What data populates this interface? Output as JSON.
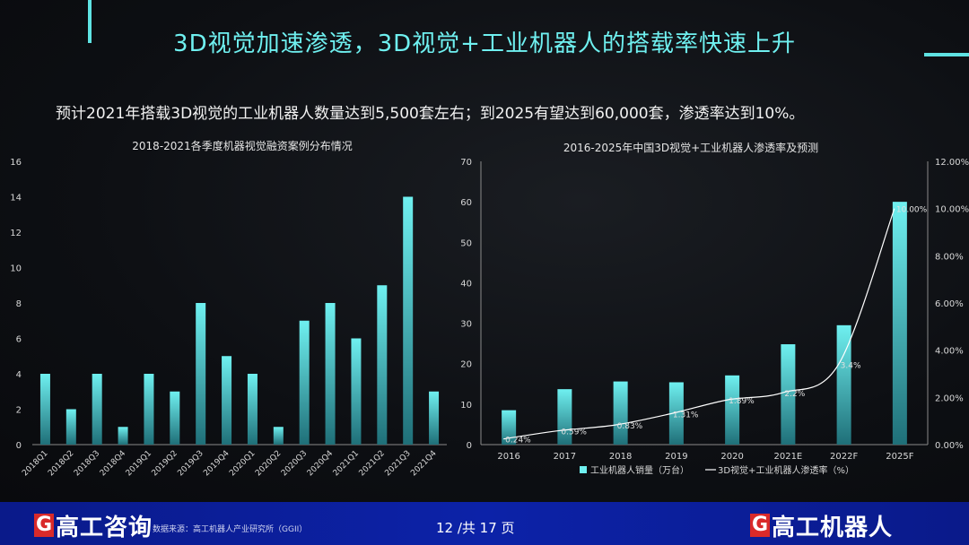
{
  "title": "3D视觉加速渗透，3D视觉+工业机器人的搭载率快速上升",
  "subtitle": "预计2021年搭载3D视觉的工业机器人数量达到5,500套左右；到2025有望达到60,000套，渗透率达到10%。",
  "footer": {
    "left_logo_mark": "G",
    "left_logo_text": "高工咨询",
    "source": "数据来源：高工机器人产业研究所（GGII）",
    "pager": "12 /共 17 页",
    "right_logo_mark": "G",
    "right_logo_text": "高工机器人"
  },
  "colors": {
    "accent": "#6ff0f0",
    "bar_top": "#6ff0f0",
    "bar_bottom": "#1f6f78",
    "footer": "#0c22a8",
    "logo_red": "#d92a2a"
  },
  "chart_data": [
    {
      "type": "bar",
      "title": "2018-2021各季度机器视觉融资案例分布情况",
      "categories": [
        "2018Q1",
        "2018Q2",
        "2018Q3",
        "2018Q4",
        "2019Q1",
        "2019Q2",
        "2019Q3",
        "2019Q4",
        "2020Q1",
        "2020Q2",
        "2020Q3",
        "2020Q4",
        "2021Q1",
        "2021Q2",
        "2021Q3",
        "2021Q4"
      ],
      "values": [
        4,
        2,
        4,
        1,
        4,
        3,
        8,
        5,
        4,
        1,
        7,
        8,
        6,
        9,
        14,
        3
      ],
      "ylim": [
        0,
        16
      ],
      "yticks": [
        0,
        2,
        4,
        6,
        8,
        10,
        12,
        14,
        16
      ],
      "grid": false
    },
    {
      "type": "bar+line",
      "title": "2016-2025年中国3D视觉+工业机器人渗透率及预测",
      "categories": [
        "2016",
        "2017",
        "2018",
        "2019",
        "2020",
        "2021E",
        "2022F",
        "2025F"
      ],
      "bar_series": {
        "name": "工业机器人销量（万台）",
        "values": [
          8.5,
          13.7,
          15.6,
          15.4,
          17.1,
          24.8,
          29.5,
          60
        ]
      },
      "line_series": {
        "name": "3D视觉+工业机器人渗透率（%）",
        "values": [
          0.24,
          0.59,
          0.83,
          1.31,
          1.89,
          2.2,
          3.4,
          10.0
        ],
        "labels": [
          "0.24%",
          "0.59%",
          "0.83%",
          "1.31%",
          "1.89%",
          "2.2%",
          "3.4%",
          "10.00%"
        ]
      },
      "y_left": {
        "lim": [
          0,
          70
        ],
        "ticks": [
          0,
          10,
          20,
          30,
          40,
          50,
          60,
          70
        ]
      },
      "y_right": {
        "lim": [
          0,
          12
        ],
        "ticks": [
          "0.00%",
          "2.00%",
          "4.00%",
          "6.00%",
          "8.00%",
          "10.00%",
          "12.00%"
        ]
      },
      "legend_position": "bottom",
      "grid": false
    }
  ]
}
